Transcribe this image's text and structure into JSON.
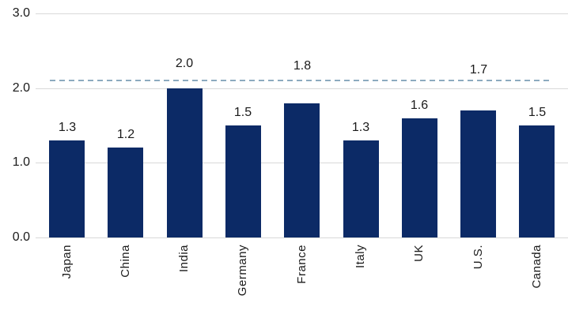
{
  "chart_data": {
    "type": "bar",
    "title": "",
    "xlabel": "",
    "ylabel": "",
    "categories": [
      "Japan",
      "China",
      "India",
      "Germany",
      "France",
      "Italy",
      "UK",
      "U.S.",
      "Canada"
    ],
    "values": [
      1.3,
      1.2,
      2.0,
      1.5,
      1.8,
      1.3,
      1.6,
      1.7,
      1.5
    ],
    "data_labels": [
      "1.3",
      "1.2",
      "2.0",
      "1.5",
      "1.8",
      "1.3",
      "1.6",
      "1.7",
      "1.5"
    ],
    "y_ticks": [
      {
        "label": "3.0",
        "value": 3.0
      },
      {
        "label": "2.0",
        "value": 2.0
      },
      {
        "label": "1.0",
        "value": 1.0
      },
      {
        "label": "0.0",
        "value": 0.0
      }
    ],
    "ylim": [
      0,
      3
    ],
    "grid": true,
    "legend": false,
    "reference_line": {
      "value": 2.1,
      "style": "dashed"
    }
  },
  "colors": {
    "bar": "#0c2a66",
    "reference_line": "#8caabf",
    "gridline": "#d9d9d9",
    "text": "#1a1a1a",
    "background": "#ffffff"
  }
}
